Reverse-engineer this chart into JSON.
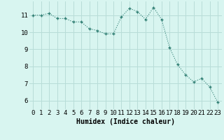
{
  "x": [
    0,
    1,
    2,
    3,
    4,
    5,
    6,
    7,
    8,
    9,
    10,
    11,
    12,
    13,
    14,
    15,
    16,
    17,
    18,
    19,
    20,
    21,
    22,
    23
  ],
  "y": [
    11.0,
    11.0,
    11.1,
    10.8,
    10.8,
    10.6,
    10.6,
    10.2,
    10.1,
    9.9,
    9.9,
    10.9,
    11.4,
    11.2,
    10.75,
    11.45,
    10.75,
    9.1,
    8.1,
    7.5,
    7.1,
    7.3,
    6.8,
    5.9
  ],
  "line_color": "#2e7d72",
  "marker": "+",
  "marker_size": 3,
  "bg_color": "#d8f5f0",
  "grid_color": "#b8ddd8",
  "xlabel": "Humidex (Indice chaleur)",
  "xlabel_fontsize": 7,
  "tick_fontsize": 6.5,
  "ylim": [
    5.5,
    11.8
  ],
  "xlim": [
    -0.5,
    23.5
  ],
  "yticks": [
    6,
    7,
    8,
    9,
    10,
    11
  ],
  "xticks": [
    0,
    1,
    2,
    3,
    4,
    5,
    6,
    7,
    8,
    9,
    10,
    11,
    12,
    13,
    14,
    15,
    16,
    17,
    18,
    19,
    20,
    21,
    22,
    23
  ]
}
